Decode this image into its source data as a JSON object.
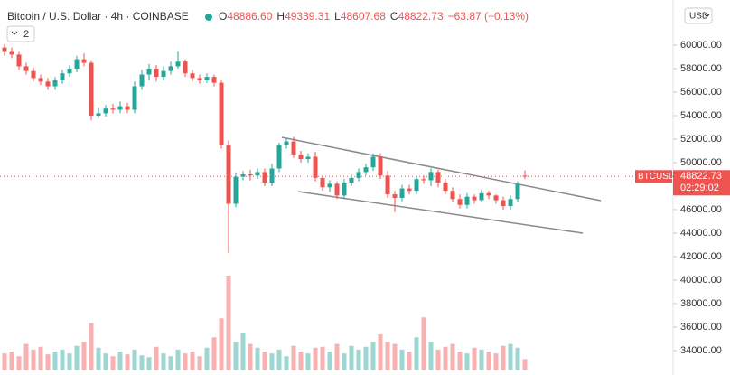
{
  "header": {
    "title": "Bitcoin / U.S. Dollar · 4h · COINBASE",
    "ohlc": [
      {
        "label": "O",
        "value": "48886.60"
      },
      {
        "label": "H",
        "value": "49339.31"
      },
      {
        "label": "L",
        "value": "48607.68"
      },
      {
        "label": "C",
        "value": "48822.73"
      }
    ],
    "change": "−63.87 (−0.13%)",
    "indicators": "2",
    "currency": "USD"
  },
  "price_tag": {
    "symbol": "BTCUSD",
    "price": "48822.73",
    "countdown": "02:29:02"
  },
  "chart_data": {
    "type": "candlestick",
    "up_color": "#26a69a",
    "down_color": "#ef5350",
    "open": [
      59800,
      59500,
      59200,
      58200,
      57800,
      57200,
      56900,
      56500,
      57000,
      57600,
      58000,
      58800,
      58500,
      54000,
      54200,
      54600,
      54500,
      54800,
      54500,
      56500,
      57500,
      58000,
      57300,
      57800,
      58200,
      58600,
      57600,
      57200,
      57000,
      57300,
      56800,
      51500,
      46500,
      48800,
      49000,
      48900,
      49200,
      48300,
      49500,
      51500,
      51800,
      50700,
      50300,
      50500,
      48700,
      47900,
      48200,
      47200,
      48300,
      48700,
      49200,
      49600,
      50500,
      48900,
      47300,
      47000,
      47800,
      47600,
      48600,
      48500,
      49200,
      48300,
      47600,
      46900,
      46400,
      47100,
      46800,
      47400,
      47200,
      46800,
      46300,
      46900,
      48886.6
    ],
    "high": [
      60100,
      59800,
      59500,
      58500,
      58100,
      57500,
      57200,
      57300,
      57900,
      58300,
      59100,
      59300,
      58700,
      54700,
      54900,
      55000,
      55200,
      55100,
      56900,
      57900,
      58400,
      58300,
      58200,
      58600,
      59500,
      58800,
      57900,
      57500,
      57600,
      57500,
      57100,
      51900,
      49100,
      49300,
      49400,
      49500,
      49500,
      49900,
      51700,
      52100,
      52200,
      51000,
      50800,
      50900,
      48900,
      48500,
      48400,
      48600,
      49000,
      49500,
      49900,
      50800,
      50800,
      49300,
      47600,
      48100,
      48100,
      48900,
      48900,
      49500,
      49400,
      48600,
      47900,
      47300,
      47400,
      47300,
      47700,
      47600,
      47300,
      47100,
      47200,
      48400,
      49339.31
    ],
    "low": [
      59100,
      58900,
      57900,
      57500,
      56900,
      56600,
      56200,
      56200,
      56700,
      57300,
      57700,
      58200,
      53600,
      53800,
      53900,
      54200,
      54200,
      54200,
      54200,
      56200,
      57000,
      56900,
      57000,
      57500,
      58000,
      57300,
      56900,
      56700,
      56800,
      56500,
      51200,
      42300,
      46200,
      48500,
      48500,
      48600,
      48000,
      48000,
      49200,
      51200,
      50400,
      50000,
      50000,
      48400,
      47600,
      47500,
      46900,
      46900,
      48000,
      48400,
      48900,
      49300,
      48600,
      47000,
      45800,
      46700,
      47300,
      47300,
      48200,
      48000,
      47900,
      47300,
      46600,
      46100,
      46100,
      46500,
      46600,
      46900,
      46500,
      46000,
      46000,
      46600,
      48607.68
    ],
    "close": [
      59500,
      59200,
      58200,
      57800,
      57200,
      56900,
      56500,
      57000,
      57600,
      58000,
      58800,
      58500,
      54000,
      54200,
      54600,
      54500,
      54800,
      54500,
      56500,
      57500,
      58000,
      57300,
      57800,
      58200,
      58600,
      57600,
      57200,
      57000,
      57300,
      56800,
      51500,
      46500,
      48800,
      49000,
      48900,
      49200,
      48300,
      49500,
      51500,
      51800,
      50700,
      50300,
      50500,
      48700,
      47900,
      48200,
      47200,
      48300,
      48700,
      49200,
      49600,
      50500,
      48900,
      47300,
      47000,
      47800,
      47600,
      48600,
      48500,
      49200,
      48300,
      47600,
      46900,
      46400,
      47100,
      46800,
      47400,
      47200,
      46800,
      46300,
      46900,
      48200,
      48822.73
    ],
    "volume": [
      18,
      20,
      15,
      28,
      22,
      25,
      17,
      20,
      22,
      18,
      26,
      30,
      50,
      24,
      18,
      15,
      20,
      17,
      22,
      16,
      14,
      25,
      18,
      15,
      22,
      18,
      20,
      15,
      24,
      35,
      55,
      100,
      30,
      40,
      28,
      24,
      20,
      18,
      22,
      15,
      26,
      20,
      18,
      24,
      25,
      20,
      28,
      18,
      26,
      22,
      25,
      30,
      38,
      30,
      28,
      22,
      20,
      35,
      56,
      30,
      22,
      25,
      28,
      20,
      18,
      24,
      22,
      20,
      18,
      26,
      28,
      24,
      12
    ],
    "ylim": [
      32300,
      63850
    ],
    "yticks": [
      {
        "value": 34000,
        "label": "34000.00"
      },
      {
        "value": 36000,
        "label": "36000.00"
      },
      {
        "value": 38000,
        "label": "38000.00"
      },
      {
        "value": 40000,
        "label": "40000.00"
      },
      {
        "value": 42000,
        "label": "42000.00"
      },
      {
        "value": 44000,
        "label": "44000.00"
      },
      {
        "value": 46000,
        "label": "46000.00"
      },
      {
        "value": 48000,
        "label": "48000.00"
      },
      {
        "value": 50000,
        "label": "50000.00"
      },
      {
        "value": 52000,
        "label": "52000.00"
      },
      {
        "value": 54000,
        "label": "54000.00"
      },
      {
        "value": 56000,
        "label": "56000.00"
      },
      {
        "value": 58000,
        "label": "58000.00"
      },
      {
        "value": 60000,
        "label": "60000.00"
      }
    ]
  }
}
